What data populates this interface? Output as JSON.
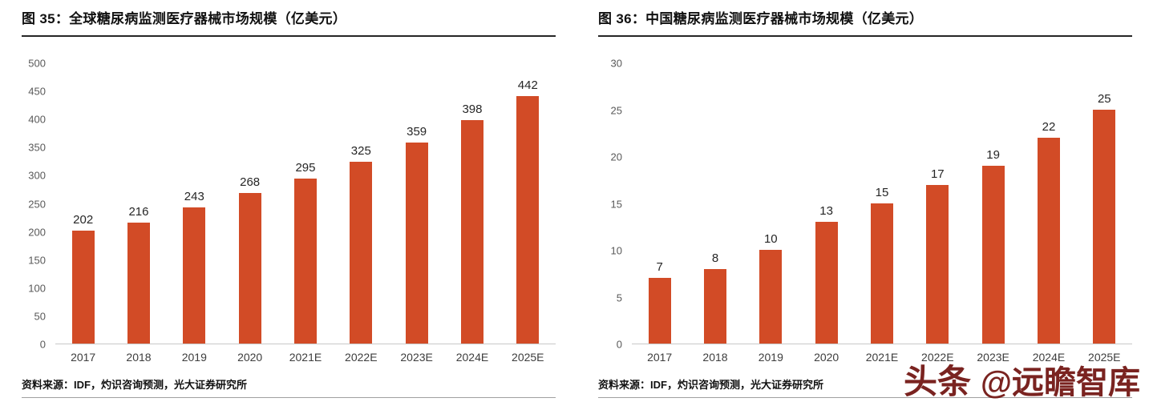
{
  "watermark": {
    "logo_text": "头条",
    "handle_text": "@远瞻智库",
    "color": "#7a2320"
  },
  "chart_data": [
    {
      "type": "bar",
      "title": "图 35：全球糖尿病监测医疗器械市场规模（亿美元）",
      "source": "资料来源：IDF，灼识咨询预测，光大证券研究所",
      "categories": [
        "2017",
        "2018",
        "2019",
        "2020",
        "2021E",
        "2022E",
        "2023E",
        "2024E",
        "2025E"
      ],
      "values": [
        202,
        216,
        243,
        268,
        295,
        325,
        359,
        398,
        442
      ],
      "ylim": [
        0,
        500
      ],
      "yticks": [
        0,
        50,
        100,
        150,
        200,
        250,
        300,
        350,
        400,
        450,
        500
      ],
      "bar_color": "#d24b26",
      "grid": false,
      "legend": "none",
      "xlabel": "",
      "ylabel": ""
    },
    {
      "type": "bar",
      "title": "图 36：中国糖尿病监测医疗器械市场规模（亿美元）",
      "source": "资料来源：IDF，灼识咨询预测，光大证券研究所",
      "categories": [
        "2017",
        "2018",
        "2019",
        "2020",
        "2021E",
        "2022E",
        "2023E",
        "2024E",
        "2025E"
      ],
      "values": [
        7,
        8,
        10,
        13,
        15,
        17,
        19,
        22,
        25
      ],
      "ylim": [
        0,
        30
      ],
      "yticks": [
        0,
        5,
        10,
        15,
        20,
        25,
        30
      ],
      "bar_color": "#d24b26",
      "grid": false,
      "legend": "none",
      "xlabel": "",
      "ylabel": ""
    }
  ]
}
